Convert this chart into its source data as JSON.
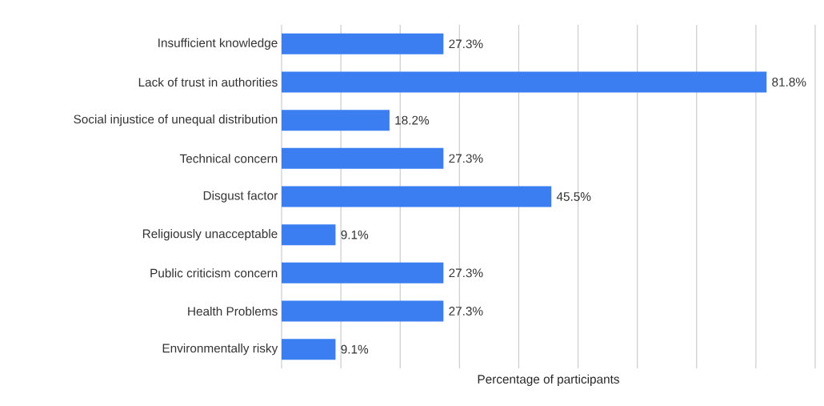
{
  "chart_data": {
    "type": "bar",
    "orientation": "horizontal",
    "xlabel": "Percentage of participants",
    "categories": [
      "Insufficient knowledge",
      "Lack of trust in authorities",
      "Social injustice of unequal distribution",
      "Technical concern",
      "Disgust factor",
      "Religiously unacceptable",
      "Public criticism concern",
      "Health Problems",
      "Environmentally risky"
    ],
    "values": [
      27.3,
      81.8,
      18.2,
      27.3,
      45.5,
      9.1,
      27.3,
      27.3,
      9.1
    ],
    "value_labels": [
      "27.3%",
      "81.8%",
      "18.2%",
      "27.3%",
      "45.5%",
      "9.1%",
      "27.3%",
      "27.3%",
      "9.1%"
    ],
    "color": "#3a7ef2",
    "xlim": [
      0,
      90
    ],
    "xticks": [
      {
        "value": 0,
        "label": null
      },
      {
        "value": 10,
        "label": null
      },
      {
        "value": 20,
        "label": null
      },
      {
        "value": 30,
        "label": null
      },
      {
        "value": 40,
        "label": null
      },
      {
        "value": 50,
        "label": null
      },
      {
        "value": 60,
        "label": null
      },
      {
        "value": 70,
        "label": null
      },
      {
        "value": 80,
        "label": null
      },
      {
        "value": 90,
        "label": null
      }
    ],
    "tick_labels": "y",
    "grid": "x"
  }
}
